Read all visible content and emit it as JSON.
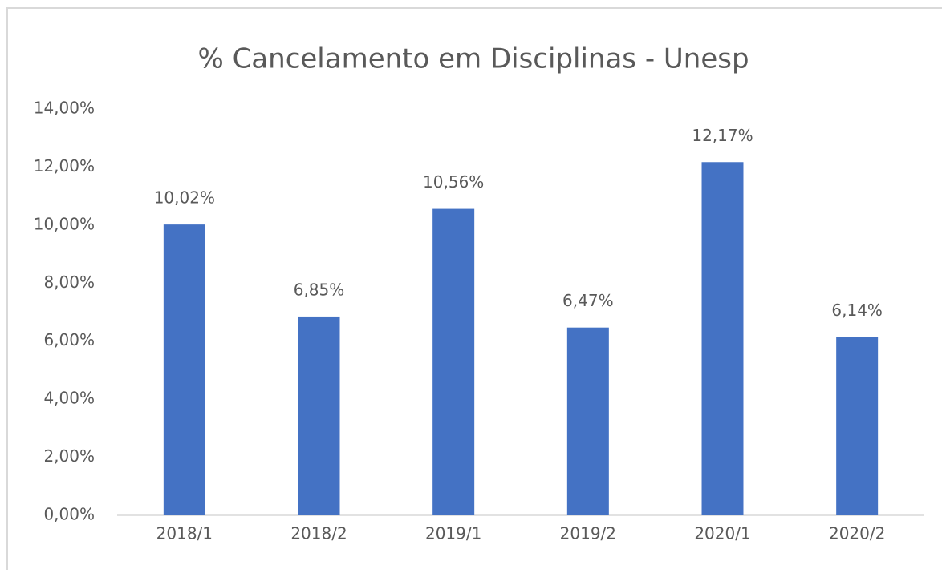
{
  "chart_data": {
    "type": "bar",
    "title": "% Cancelamento em Disciplinas - Unesp",
    "categories": [
      "2018/1",
      "2018/2",
      "2019/1",
      "2019/2",
      "2020/1",
      "2020/2"
    ],
    "values": [
      10.02,
      6.85,
      10.56,
      6.47,
      12.17,
      6.14
    ],
    "value_labels": [
      "10,02%",
      "6,85%",
      "10,56%",
      "6,47%",
      "12,17%",
      "6,14%"
    ],
    "color": "#4472c4",
    "ylim": [
      0,
      14
    ],
    "yticks": [
      {
        "value": 0,
        "label": "0,00%"
      },
      {
        "value": 2,
        "label": "2,00%"
      },
      {
        "value": 4,
        "label": "4,00%"
      },
      {
        "value": 6,
        "label": "6,00%"
      },
      {
        "value": 8,
        "label": "8,00%"
      },
      {
        "value": 10,
        "label": "10,00%"
      },
      {
        "value": 12,
        "label": "12,00%"
      },
      {
        "value": 14,
        "label": "14,00%"
      }
    ],
    "grid": false
  }
}
